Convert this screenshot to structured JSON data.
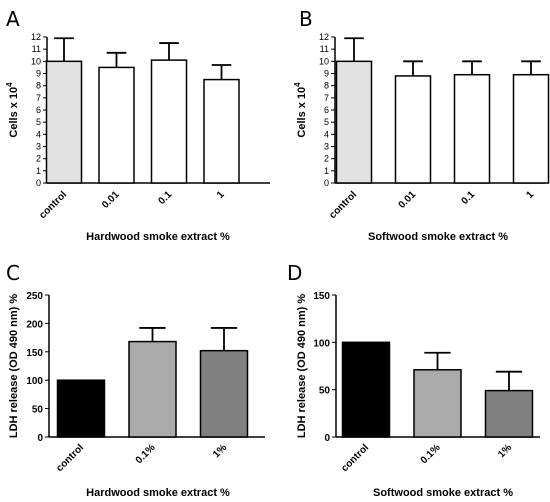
{
  "chart_data": [
    {
      "panel": "A",
      "type": "bar",
      "xlabel": "Hardwood smoke extract %",
      "ylabel": "Cells x 10",
      "ylabel_sup": "4",
      "ylim": [
        0,
        12
      ],
      "yticks": [
        0,
        1,
        2,
        3,
        4,
        5,
        6,
        7,
        8,
        9,
        10,
        11,
        12
      ],
      "categories": [
        "control",
        "0.01",
        "0.1",
        "1"
      ],
      "values": [
        10.0,
        9.5,
        10.1,
        8.5
      ],
      "errors": [
        1.9,
        1.2,
        1.4,
        1.2
      ],
      "bar_colors": [
        "#e2e2e2",
        "#ffffff",
        "#ffffff",
        "#ffffff"
      ]
    },
    {
      "panel": "B",
      "type": "bar",
      "xlabel": "Softwood smoke extract %",
      "ylabel": "Cells x 10",
      "ylabel_sup": "4",
      "ylim": [
        0,
        12
      ],
      "yticks": [
        0,
        1,
        2,
        3,
        4,
        5,
        6,
        7,
        8,
        9,
        10,
        11,
        12
      ],
      "categories": [
        "control",
        "0.01",
        "0.1",
        "1"
      ],
      "values": [
        10.0,
        8.8,
        8.9,
        8.9
      ],
      "errors": [
        1.9,
        1.2,
        1.1,
        1.1
      ],
      "bar_colors": [
        "#e2e2e2",
        "#ffffff",
        "#ffffff",
        "#ffffff"
      ]
    },
    {
      "panel": "C",
      "type": "bar",
      "xlabel": "Hardwood smoke extract %",
      "ylabel": "LDH release (OD 490 nm) %",
      "ylim": [
        0,
        250
      ],
      "yticks": [
        0,
        50,
        100,
        150,
        200,
        250
      ],
      "categories": [
        "control",
        "0.1%",
        "1%"
      ],
      "values": [
        100,
        168,
        152
      ],
      "errors": [
        0,
        24,
        40
      ],
      "bar_colors": [
        "#000000",
        "#aaaaaa",
        "#808080"
      ]
    },
    {
      "panel": "D",
      "type": "bar",
      "xlabel": "Softwood smoke extract %",
      "ylabel": "LDH release (OD 490 nm) %",
      "ylim": [
        0,
        150
      ],
      "yticks": [
        0,
        50,
        100,
        150
      ],
      "categories": [
        "control",
        "0.1%",
        "1%"
      ],
      "values": [
        100,
        71,
        49
      ],
      "errors": [
        0,
        18,
        20
      ],
      "bar_colors": [
        "#000000",
        "#aaaaaa",
        "#808080"
      ]
    }
  ]
}
